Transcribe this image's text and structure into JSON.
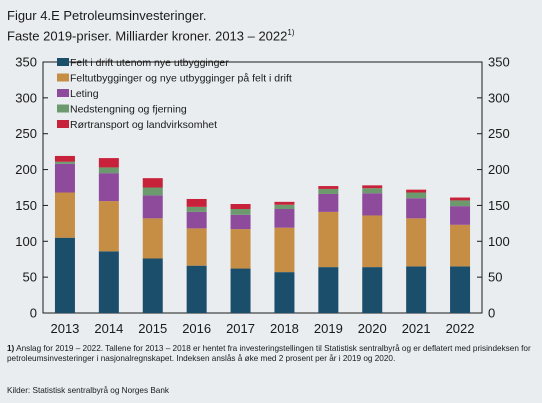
{
  "figure": {
    "title": "Figur 4.E Petroleumsinvesteringer.",
    "subtitle": "Faste 2019-priser. Milliarder kroner. 2013 – 2022",
    "subtitle_sup": "1)",
    "note_marker": "1)",
    "note_text": " Anslag for 2019 – 2022. Tallene for 2013 – 2018 er hentet fra investeringstellingen til Statistisk sentralbyrå og er deflatert med prisindeksen for petroleumsinvesteringer i nasjonalregnskapet. Indeksen anslås å øke med 2 prosent per år i 2019 og 2020.",
    "source": "Kilder: Statistisk sentralbyrå og Norges Bank"
  },
  "chart_data": {
    "type": "bar",
    "stacked": true,
    "categories": [
      "2013",
      "2014",
      "2015",
      "2016",
      "2017",
      "2018",
      "2019",
      "2020",
      "2021",
      "2022"
    ],
    "ylim": [
      0,
      350
    ],
    "yticks": [
      0,
      50,
      100,
      150,
      200,
      250,
      300,
      350
    ],
    "ytick_labels": [
      "0",
      "50",
      "100",
      "150",
      "200",
      "250",
      "300",
      "350"
    ],
    "y_axis_both_sides": true,
    "grid": false,
    "legend_position": "top",
    "series": [
      {
        "name": "Felt i drift utenom nye utbygginger",
        "color": "#1b4e6b",
        "values": [
          105,
          86,
          76,
          66,
          62,
          57,
          64,
          64,
          65,
          65
        ]
      },
      {
        "name": "Feltutbygginger og nye utbygginger på felt i drift",
        "color": "#c68d44",
        "values": [
          63,
          70,
          56,
          52,
          55,
          62,
          77,
          72,
          67,
          58
        ]
      },
      {
        "name": "Leting",
        "color": "#8e4a9b",
        "values": [
          40,
          39,
          32,
          23,
          20,
          26,
          25,
          31,
          28,
          26
        ]
      },
      {
        "name": "Nedstengning og fjerning",
        "color": "#6c9a6e",
        "values": [
          3,
          8,
          11,
          7,
          8,
          6,
          7,
          7,
          8,
          8
        ]
      },
      {
        "name": "Rørtransport og landvirksomhet",
        "color": "#c8213a",
        "values": [
          8,
          13,
          13,
          11,
          7,
          4,
          4,
          4,
          4,
          4
        ]
      }
    ]
  }
}
